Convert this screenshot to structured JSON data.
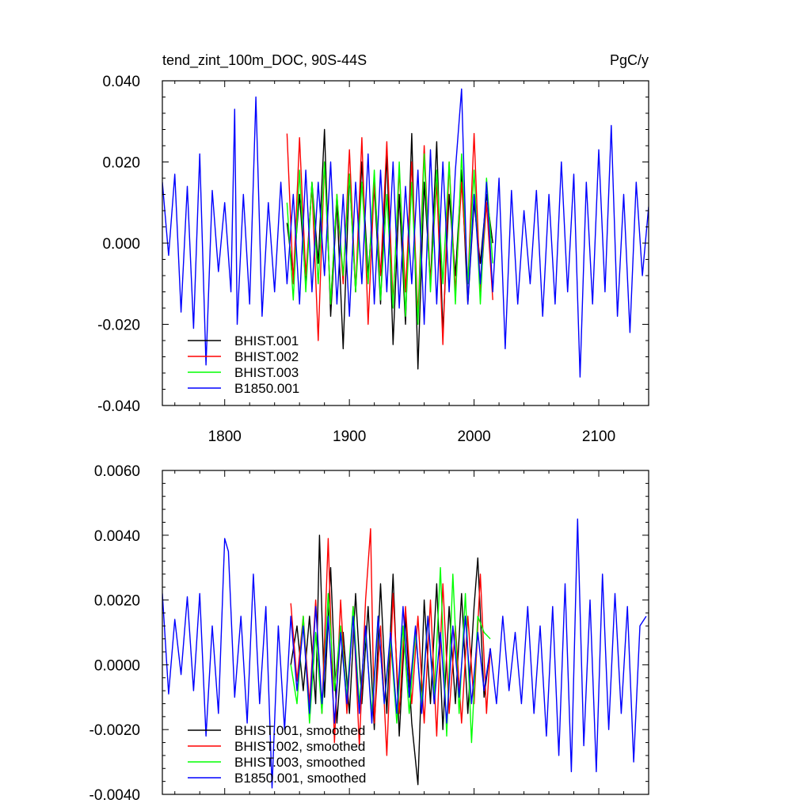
{
  "chart_data": [
    {
      "type": "line",
      "title": "tend_zint_100m_DOC, 90S-44S",
      "units": "PgC/y",
      "xlim": [
        1750,
        2140
      ],
      "ylim": [
        -0.04,
        0.04
      ],
      "x_ticks": [
        "1800",
        "1900",
        "2000",
        "2100"
      ],
      "y_ticks": [
        "-0.040",
        "-0.020",
        "0.000",
        "0.020",
        "0.040"
      ],
      "legend_position": "bottom-left",
      "series": [
        {
          "name": "BHIST.001",
          "color": "#000000",
          "x": [
            1850,
            1855,
            1860,
            1865,
            1870,
            1875,
            1880,
            1885,
            1890,
            1895,
            1900,
            1905,
            1910,
            1915,
            1920,
            1925,
            1930,
            1935,
            1940,
            1945,
            1950,
            1955,
            1960,
            1965,
            1970,
            1975,
            1980,
            1985,
            1990,
            1995,
            2000,
            2005,
            2010,
            2015
          ],
          "values": [
            0.005,
            -0.008,
            0.012,
            -0.01,
            0.015,
            -0.005,
            0.028,
            -0.018,
            0.01,
            -0.026,
            0.017,
            -0.012,
            0.02,
            -0.008,
            0.014,
            -0.015,
            0.022,
            -0.025,
            0.012,
            -0.02,
            0.027,
            -0.031,
            0.015,
            -0.01,
            0.025,
            -0.022,
            0.012,
            -0.008,
            0.018,
            -0.015,
            0.01,
            -0.005,
            0.012,
            0.0
          ]
        },
        {
          "name": "BHIST.002",
          "color": "#ff0000",
          "x": [
            1850,
            1855,
            1860,
            1865,
            1870,
            1875,
            1880,
            1885,
            1890,
            1895,
            1900,
            1905,
            1910,
            1915,
            1920,
            1925,
            1930,
            1935,
            1940,
            1945,
            1950,
            1955,
            1960,
            1965,
            1970,
            1975,
            1980,
            1985,
            1990,
            1995,
            2000,
            2005,
            2010,
            2015
          ],
          "values": [
            0.027,
            -0.01,
            0.026,
            -0.008,
            0.014,
            -0.024,
            0.02,
            -0.015,
            0.012,
            -0.01,
            0.023,
            -0.012,
            0.026,
            -0.02,
            0.015,
            -0.008,
            0.025,
            -0.015,
            0.018,
            -0.012,
            0.02,
            -0.018,
            0.024,
            -0.01,
            0.015,
            -0.025,
            0.02,
            -0.012,
            0.015,
            -0.01,
            0.027,
            -0.012,
            0.01,
            -0.014
          ]
        },
        {
          "name": "BHIST.003",
          "color": "#00ff00",
          "x": [
            1850,
            1855,
            1860,
            1865,
            1870,
            1875,
            1880,
            1885,
            1890,
            1895,
            1900,
            1905,
            1910,
            1915,
            1920,
            1925,
            1930,
            1935,
            1940,
            1945,
            1950,
            1955,
            1960,
            1965,
            1970,
            1975,
            1980,
            1985,
            1990,
            1995,
            2000,
            2005,
            2010,
            2015
          ],
          "values": [
            0.01,
            -0.014,
            0.018,
            -0.012,
            0.015,
            -0.01,
            0.02,
            -0.015,
            0.012,
            -0.008,
            0.017,
            -0.012,
            0.015,
            -0.01,
            0.018,
            -0.014,
            0.012,
            -0.016,
            0.02,
            -0.018,
            0.015,
            -0.02,
            0.022,
            -0.012,
            0.018,
            -0.01,
            0.02,
            -0.015,
            0.022,
            -0.01,
            0.018,
            -0.015,
            0.016,
            -0.005
          ]
        },
        {
          "name": "B1850.001",
          "color": "#0000ff",
          "x": [
            1750,
            1755,
            1760,
            1765,
            1770,
            1775,
            1780,
            1785,
            1790,
            1795,
            1800,
            1805,
            1808,
            1810,
            1815,
            1820,
            1825,
            1830,
            1835,
            1840,
            1845,
            1850,
            1855,
            1860,
            1865,
            1870,
            1875,
            1880,
            1885,
            1890,
            1895,
            1900,
            1905,
            1910,
            1915,
            1920,
            1925,
            1930,
            1935,
            1940,
            1945,
            1950,
            1955,
            1960,
            1965,
            1970,
            1975,
            1980,
            1985,
            1990,
            1995,
            2000,
            2005,
            2010,
            2015,
            2020,
            2025,
            2030,
            2035,
            2040,
            2045,
            2050,
            2055,
            2060,
            2065,
            2070,
            2075,
            2080,
            2085,
            2090,
            2095,
            2100,
            2105,
            2110,
            2115,
            2120,
            2125,
            2130,
            2135,
            2140
          ],
          "values": [
            0.015,
            -0.003,
            0.017,
            -0.017,
            0.014,
            -0.021,
            0.022,
            -0.03,
            0.013,
            -0.007,
            0.01,
            -0.012,
            0.033,
            -0.02,
            0.012,
            -0.015,
            0.036,
            -0.018,
            0.01,
            -0.012,
            0.015,
            -0.01,
            0.012,
            -0.015,
            0.018,
            -0.012,
            0.015,
            -0.008,
            0.02,
            -0.015,
            0.012,
            -0.018,
            0.015,
            -0.01,
            0.022,
            -0.015,
            0.018,
            -0.012,
            0.02,
            -0.016,
            0.014,
            -0.01,
            0.018,
            -0.02,
            0.023,
            -0.015,
            0.02,
            -0.012,
            0.018,
            0.038,
            -0.015,
            0.012,
            -0.01,
            0.015,
            -0.012,
            0.016,
            -0.026,
            0.013,
            -0.015,
            0.008,
            -0.01,
            0.013,
            -0.018,
            0.012,
            -0.015,
            0.02,
            -0.012,
            0.017,
            -0.033,
            0.015,
            -0.015,
            0.023,
            -0.012,
            0.029,
            -0.018,
            0.012,
            -0.022,
            0.015,
            -0.008,
            0.009
          ]
        }
      ]
    },
    {
      "type": "line",
      "xlim": [
        1750,
        2140
      ],
      "ylim": [
        -0.004,
        0.006
      ],
      "y_ticks": [
        "-0.0040",
        "-0.0020",
        "0.0000",
        "0.0020",
        "0.0040",
        "0.0060"
      ],
      "legend_position": "bottom-left",
      "series": [
        {
          "name": "BHIST.001, smoothed",
          "color": "#000000",
          "x": [
            1853,
            1858,
            1863,
            1868,
            1873,
            1876,
            1880,
            1885,
            1890,
            1895,
            1900,
            1905,
            1910,
            1915,
            1920,
            1925,
            1930,
            1935,
            1940,
            1945,
            1950,
            1955,
            1960,
            1965,
            1970,
            1975,
            1980,
            1985,
            1990,
            1995,
            2000,
            2003,
            2008,
            2013
          ],
          "values": [
            0.0,
            0.0012,
            -0.0008,
            0.0015,
            -0.0012,
            0.004,
            -0.001,
            0.003,
            -0.0018,
            0.001,
            -0.0015,
            0.0022,
            -0.0012,
            0.0018,
            -0.002,
            0.0025,
            -0.0015,
            0.0028,
            -0.0022,
            0.0015,
            -0.0018,
            -0.0037,
            0.002,
            -0.0012,
            0.0025,
            -0.002,
            0.0018,
            -0.0012,
            0.0022,
            -0.0015,
            0.0018,
            0.0033,
            -0.001,
            0.0005
          ]
        },
        {
          "name": "BHIST.002, smoothed",
          "color": "#ff0000",
          "x": [
            1853,
            1858,
            1863,
            1868,
            1873,
            1878,
            1883,
            1888,
            1893,
            1898,
            1903,
            1908,
            1913,
            1917,
            1920,
            1925,
            1930,
            1935,
            1940,
            1945,
            1950,
            1955,
            1960,
            1965,
            1970,
            1975,
            1980,
            1985,
            1990,
            1995,
            2000,
            2005,
            2010,
            2013
          ],
          "values": [
            0.0019,
            -0.0005,
            0.0015,
            -0.0012,
            0.002,
            -0.0015,
            0.0039,
            -0.0024,
            0.002,
            -0.0015,
            0.0018,
            -0.0025,
            0.002,
            0.0042,
            -0.0018,
            0.0012,
            -0.0028,
            0.0022,
            -0.0015,
            0.0018,
            -0.0012,
            0.0015,
            -0.0018,
            0.002,
            -0.0022,
            0.0025,
            -0.0015,
            0.0012,
            -0.0018,
            0.0015,
            -0.0012,
            0.0028,
            -0.0015,
            0.0005
          ]
        },
        {
          "name": "BHIST.003, smoothed",
          "color": "#00ff00",
          "x": [
            1853,
            1858,
            1863,
            1868,
            1873,
            1878,
            1883,
            1888,
            1893,
            1898,
            1903,
            1908,
            1913,
            1918,
            1923,
            1928,
            1933,
            1938,
            1943,
            1948,
            1953,
            1958,
            1963,
            1968,
            1973,
            1978,
            1983,
            1988,
            1993,
            1998,
            2003,
            2008,
            2013
          ],
          "values": [
            0.0,
            -0.0012,
            0.0015,
            -0.0018,
            0.001,
            -0.0015,
            0.0022,
            -0.0008,
            0.0012,
            -0.001,
            0.0018,
            -0.0012,
            0.001,
            -0.0015,
            0.0015,
            -0.0012,
            0.0008,
            -0.0018,
            0.0012,
            -0.0015,
            0.001,
            -0.0012,
            0.0015,
            -0.001,
            0.003,
            -0.0022,
            0.0028,
            -0.0015,
            0.0022,
            -0.0024,
            0.0015,
            0.001,
            0.0008
          ]
        },
        {
          "name": "B1850.001, smoothed",
          "color": "#0000ff",
          "x": [
            1750,
            1755,
            1760,
            1765,
            1770,
            1775,
            1780,
            1785,
            1790,
            1795,
            1800,
            1803,
            1808,
            1813,
            1818,
            1823,
            1828,
            1833,
            1838,
            1843,
            1848,
            1853,
            1858,
            1863,
            1868,
            1873,
            1878,
            1883,
            1888,
            1893,
            1898,
            1903,
            1908,
            1913,
            1918,
            1923,
            1928,
            1933,
            1938,
            1943,
            1948,
            1953,
            1958,
            1963,
            1968,
            1973,
            1978,
            1983,
            1988,
            1993,
            1998,
            2003,
            2008,
            2013,
            2018,
            2023,
            2028,
            2033,
            2038,
            2043,
            2048,
            2053,
            2058,
            2063,
            2068,
            2073,
            2078,
            2083,
            2088,
            2093,
            2098,
            2103,
            2108,
            2113,
            2118,
            2123,
            2128,
            2133,
            2138
          ],
          "values": [
            0.0022,
            -0.0009,
            0.0014,
            -0.0003,
            0.0021,
            -0.0008,
            0.0022,
            -0.0022,
            0.0012,
            -0.0015,
            0.0039,
            0.0035,
            -0.001,
            0.0015,
            -0.0018,
            0.0028,
            -0.0012,
            0.0018,
            -0.0038,
            0.0012,
            -0.002,
            0.0015,
            -0.0008,
            0.0012,
            -0.0015,
            0.0018,
            -0.0012,
            0.0015,
            -0.0018,
            0.001,
            -0.0012,
            0.0015,
            -0.0015,
            0.0012,
            -0.0018,
            0.0015,
            -0.0012,
            0.001,
            -0.0015,
            0.0018,
            -0.001,
            0.0012,
            -0.0015,
            0.0015,
            -0.0012,
            0.001,
            -0.0018,
            0.0012,
            -0.001,
            0.0015,
            -0.0012,
            0.001,
            -0.0008,
            0.0005,
            -0.0012,
            0.0015,
            -0.0008,
            0.001,
            -0.0012,
            0.0018,
            -0.0015,
            0.0012,
            -0.0022,
            0.0018,
            -0.0028,
            0.0025,
            -0.0033,
            0.0045,
            -0.0025,
            0.002,
            -0.0033,
            0.0028,
            -0.002,
            0.0022,
            -0.0015,
            0.0018,
            -0.003,
            0.0012,
            0.0015
          ]
        }
      ]
    }
  ]
}
